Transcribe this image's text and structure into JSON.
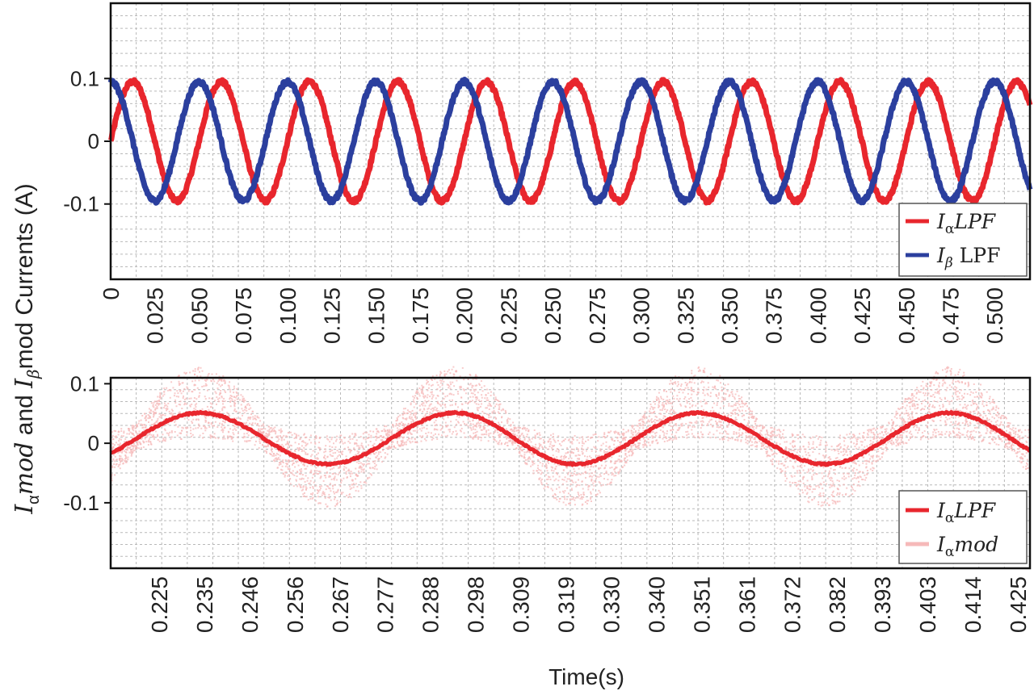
{
  "chart_data": [
    {
      "type": "line",
      "ylim": [
        -0.22,
        0.22
      ],
      "xlim": [
        0,
        0.52
      ],
      "grid": true,
      "y_ticks": [
        {
          "value": 0.1,
          "label": "0.1"
        },
        {
          "value": 0,
          "label": "0"
        },
        {
          "value": -0.1,
          "label": "-0.1"
        }
      ],
      "x_ticks": [
        "0",
        "0.025",
        "0.050",
        "0.075",
        "0.100",
        "0.125",
        "0.150",
        "0.175",
        "0.200",
        "0.225",
        "0.250",
        "0.275",
        "0.300",
        "0.325",
        "0.350",
        "0.375",
        "0.400",
        "0.425",
        "0.450",
        "0.475",
        "0.500"
      ],
      "legend_position": "bottom-right",
      "legend": [
        {
          "main": "I",
          "sub": "α",
          "rest": "LPF",
          "color": "#e8262d"
        },
        {
          "main": "I",
          "sub": "β",
          "rest": " LPF",
          "color": "#2b3f9e"
        }
      ],
      "series": [
        {
          "color": "#e8262d",
          "amplitude": 0.095,
          "frequency_hz": 20,
          "phase_deg": 0,
          "x_start": 0,
          "x_end": 0.52
        },
        {
          "color": "#2b3f9e",
          "amplitude": 0.095,
          "frequency_hz": 20,
          "phase_deg": 90,
          "x_start": 0,
          "x_end": 0.52
        }
      ]
    },
    {
      "type": "line",
      "ylim": [
        -0.21,
        0.11
      ],
      "xlim": [
        0.214,
        0.43
      ],
      "grid": true,
      "y_ticks": [
        {
          "value": 0.1,
          "label": "0.1"
        },
        {
          "value": 0,
          "label": "0"
        },
        {
          "value": -0.1,
          "label": "-0.1"
        }
      ],
      "x_ticks": [
        "0.225",
        "0.235",
        "0.246",
        "0.256",
        "0.267",
        "0.277",
        "0.288",
        "0.298",
        "0.309",
        "0.319",
        "0.330",
        "0.340",
        "0.351",
        "0.361",
        "0.372",
        "0.382",
        "0.393",
        "0.403",
        "0.414",
        "0.425"
      ],
      "xlabel": "Time(s)",
      "legend_position": "bottom-right",
      "legend": [
        {
          "main": "I",
          "sub": "α",
          "rest": "LPF",
          "color": "#e8262d"
        },
        {
          "main": "I",
          "sub": "α",
          "rest": "mod",
          "color": "#f6b9b9"
        }
      ],
      "series": [
        {
          "color": "#e8262d",
          "offset": 0.008,
          "amplitude": 0.043,
          "peaks_x": [
            0.235,
            0.295,
            0.352,
            0.411
          ],
          "troughs_x": [
            0.265,
            0.323,
            0.382
          ]
        },
        {
          "color": "#f6b9b9",
          "noise_band": 0.06,
          "follows": "series-0"
        }
      ]
    }
  ],
  "ylabel": {
    "p1_main": "I",
    "p1_sub": "α",
    "p1_rest": "mod",
    "p2": " and ",
    "p3_main": "I",
    "p3_sub": "β",
    "p4": "mod Currents (A)"
  }
}
